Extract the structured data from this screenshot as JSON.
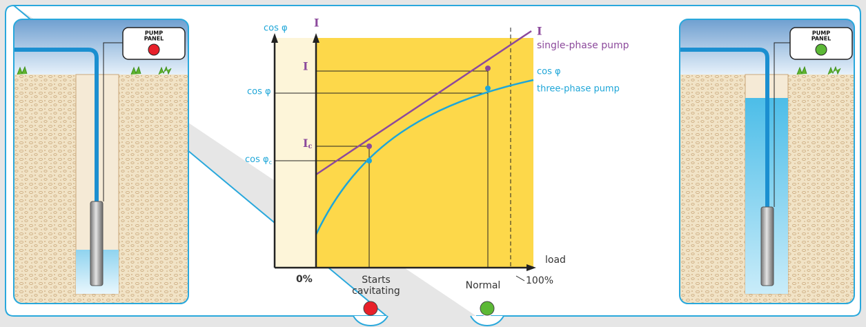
{
  "left_panel": {
    "panel_label": [
      "PUMP",
      "PANEL"
    ],
    "status_color": "#e8202a"
  },
  "right_panel": {
    "panel_label": [
      "PUMP",
      "PANEL"
    ],
    "status_color": "#5cb936"
  },
  "graph": {
    "left_axis_label": "cos φ",
    "current_axis_label": "I",
    "current_normal": "I",
    "cos_normal": "cos φ",
    "current_cavitating": {
      "label": "I",
      "sub": "c"
    },
    "cos_cavitating": {
      "label": "cos φ",
      "sub": "c"
    },
    "x_axis_label": "load",
    "x_start": "0%",
    "x_end": "100%",
    "cavitating_label": [
      "Starts",
      "cavitating"
    ],
    "normal_label": "Normal",
    "single_phase": {
      "symbol": "I",
      "name": "single-phase pump"
    },
    "three_phase": {
      "symbol": "cos φ",
      "name": "three-phase pump"
    }
  },
  "indicators": {
    "cavitating_color": "#e8202a",
    "normal_color": "#5cb936"
  }
}
